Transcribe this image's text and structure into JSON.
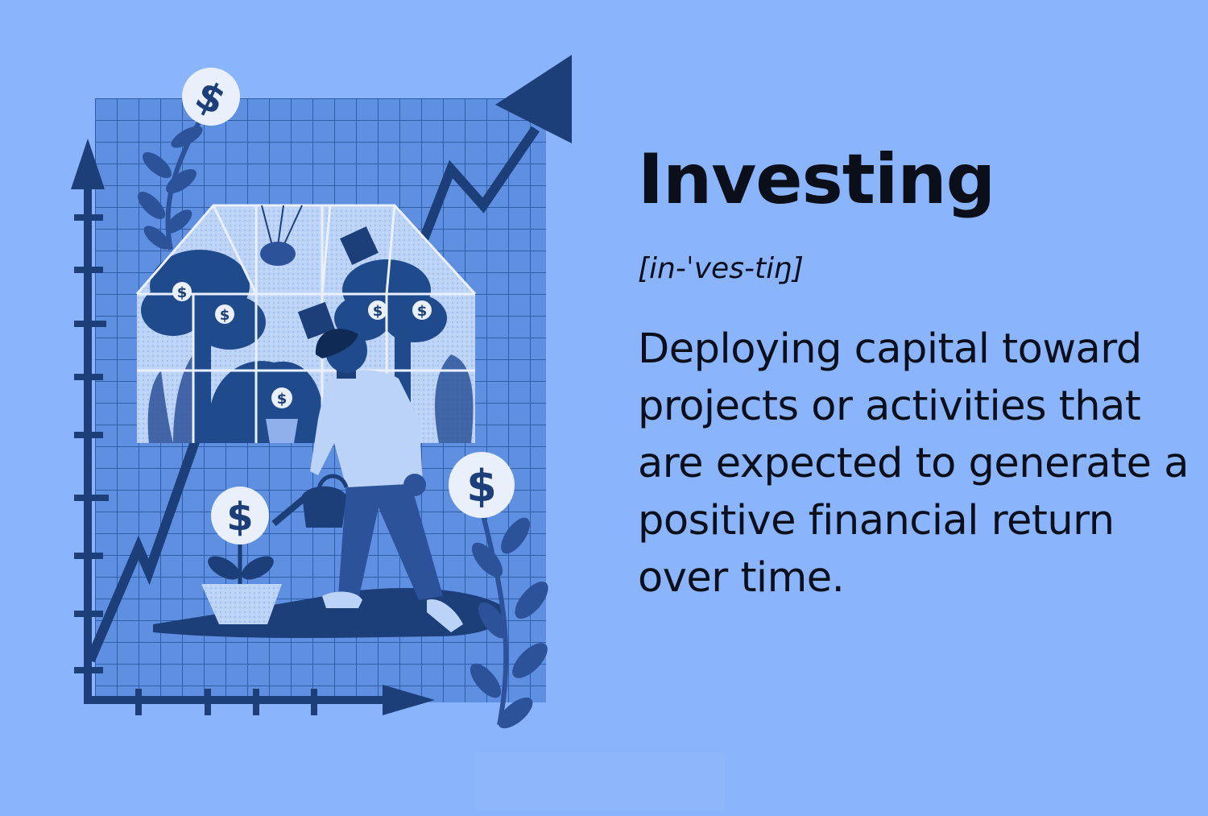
{
  "definition": {
    "term": "Investing",
    "pronunciation": "[in-ˈves-tiŋ]",
    "description": "Deploying capital toward projects or activities that are expected to generate a positive financial return over time."
  },
  "illustration": {
    "coin_symbol": "$"
  },
  "colors": {
    "background": "#8ab4fb",
    "grid_panel": "#5f8fe0",
    "dark_navy": "#1c3f7a",
    "text": "#0b0f1a"
  }
}
